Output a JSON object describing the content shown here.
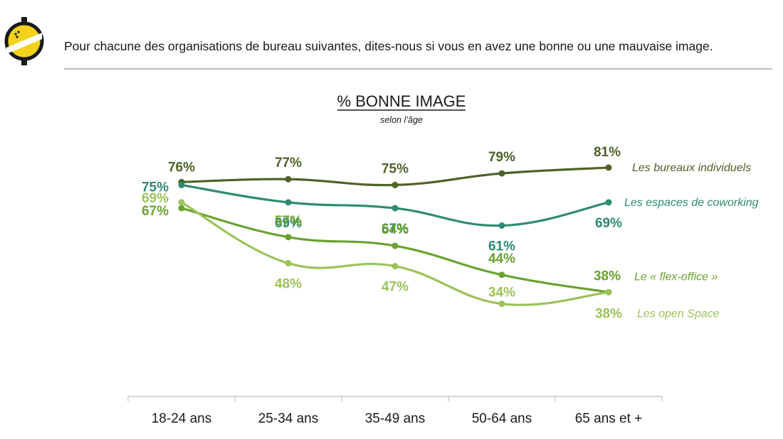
{
  "header": {
    "question": "Pour chacune des organisations de bureau suivantes, dites-nous si vous en avez une bonne ou une mauvaise image."
  },
  "chart_data": {
    "type": "line",
    "title": "% BONNE IMAGE",
    "subtitle": "selon l’âge",
    "categories": [
      "18-24 ans",
      "25-34 ans",
      "35-49 ans",
      "50-64 ans",
      "65 ans et +"
    ],
    "value_format": "{v}%",
    "series": [
      {
        "name": "Les bureaux individuels",
        "values": [
          76,
          77,
          75,
          79,
          81
        ],
        "color": "#4f6228"
      },
      {
        "name": "Les espaces de coworking",
        "values": [
          75,
          69,
          67,
          61,
          69
        ],
        "color": "#2e8b73"
      },
      {
        "name": "Le « flex-office »",
        "values": [
          67,
          57,
          54,
          44,
          38
        ],
        "color": "#6aa22e"
      },
      {
        "name": "Les open Space",
        "values": [
          69,
          48,
          47,
          34,
          38
        ],
        "color": "#9bc35a"
      }
    ],
    "grid": false,
    "legend": "inline labels at right end of each line"
  }
}
